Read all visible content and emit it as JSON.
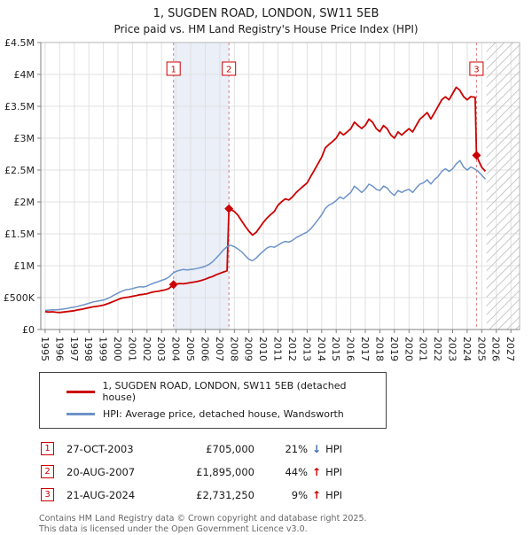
{
  "header": {
    "title": "1, SUGDEN ROAD, LONDON, SW11 5EB",
    "subtitle": "Price paid vs. HM Land Registry's House Price Index (HPI)"
  },
  "colors": {
    "property": "#cc0000",
    "hpi": "#6d93c7",
    "band": "#eaeff8",
    "grid": "#e0e0e0",
    "border": "#b5b5b5",
    "axis": "#808080",
    "hatch": "#c8c8c8",
    "dashed": "#e07c7c",
    "text": "#222222",
    "hpi_down": "#3d6eb5",
    "hpi_up": "#cc0000"
  },
  "chart_data": {
    "type": "line",
    "title": "1, SUGDEN ROAD, LONDON, SW11 5EB",
    "subtitle": "Price paid vs. HM Land Registry's House Price Index (HPI)",
    "x_unit": "year",
    "y_unit": "GBP thousands",
    "x_range": [
      1994.7,
      2027.6
    ],
    "ylim": [
      0,
      4500
    ],
    "grid": true,
    "legend_position": "bottom",
    "x_ticks": [
      1995,
      1996,
      1997,
      1998,
      1999,
      2000,
      2001,
      2002,
      2003,
      2004,
      2005,
      2006,
      2007,
      2008,
      2009,
      2010,
      2011,
      2012,
      2013,
      2014,
      2015,
      2016,
      2017,
      2018,
      2019,
      2020,
      2021,
      2022,
      2023,
      2024,
      2025,
      2026,
      2027
    ],
    "y_ticks": [
      {
        "v": 0,
        "label": "£0"
      },
      {
        "v": 500,
        "label": "£500K"
      },
      {
        "v": 1000,
        "label": "£1M"
      },
      {
        "v": 1500,
        "label": "£1.5M"
      },
      {
        "v": 2000,
        "label": "£2M"
      },
      {
        "v": 2500,
        "label": "£2.5M"
      },
      {
        "v": 3000,
        "label": "£3M"
      },
      {
        "v": 3500,
        "label": "£3.5M"
      },
      {
        "v": 4000,
        "label": "£4M"
      },
      {
        "v": 4500,
        "label": "£4.5M"
      }
    ],
    "ownership_band": [
      2003.82,
      2007.63
    ],
    "future_start": 2025.33,
    "markers": [
      {
        "n": "1",
        "x": 2003.82,
        "y": 705
      },
      {
        "n": "2",
        "x": 2007.63,
        "y": 1895
      },
      {
        "n": "3",
        "x": 2024.64,
        "y": 2731.25
      }
    ],
    "series": [
      {
        "name": "1, SUGDEN ROAD, LONDON, SW11 5EB (detached house)",
        "color": "#cc0000",
        "points": [
          [
            1995,
            280
          ],
          [
            1995.25,
            273
          ],
          [
            1995.5,
            278
          ],
          [
            1995.75,
            271
          ],
          [
            1996,
            266
          ],
          [
            1996.25,
            274
          ],
          [
            1996.5,
            281
          ],
          [
            1996.75,
            288
          ],
          [
            1997,
            295
          ],
          [
            1997.25,
            309
          ],
          [
            1997.5,
            317
          ],
          [
            1997.75,
            329
          ],
          [
            1998,
            341
          ],
          [
            1998.25,
            354
          ],
          [
            1998.5,
            361
          ],
          [
            1998.75,
            371
          ],
          [
            1999,
            382
          ],
          [
            1999.25,
            401
          ],
          [
            1999.5,
            422
          ],
          [
            1999.75,
            446
          ],
          [
            2000,
            470
          ],
          [
            2000.25,
            492
          ],
          [
            2000.5,
            501
          ],
          [
            2000.75,
            509
          ],
          [
            2001,
            521
          ],
          [
            2001.25,
            532
          ],
          [
            2001.5,
            544
          ],
          [
            2001.75,
            551
          ],
          [
            2002,
            561
          ],
          [
            2002.25,
            579
          ],
          [
            2002.5,
            591
          ],
          [
            2002.75,
            599
          ],
          [
            2003,
            611
          ],
          [
            2003.25,
            622
          ],
          [
            2003.5,
            641
          ],
          [
            2003.82,
            705
          ],
          [
            2004,
            712
          ],
          [
            2004.25,
            721
          ],
          [
            2004.5,
            716
          ],
          [
            2004.75,
            726
          ],
          [
            2005,
            736
          ],
          [
            2005.25,
            744
          ],
          [
            2005.5,
            756
          ],
          [
            2005.75,
            771
          ],
          [
            2006,
            789
          ],
          [
            2006.25,
            812
          ],
          [
            2006.5,
            831
          ],
          [
            2006.75,
            858
          ],
          [
            2007,
            879
          ],
          [
            2007.25,
            901
          ],
          [
            2007.5,
            921
          ],
          [
            2007.63,
            1895
          ],
          [
            2007.75,
            1882
          ],
          [
            2008,
            1851
          ],
          [
            2008.25,
            1792
          ],
          [
            2008.5,
            1703
          ],
          [
            2008.75,
            1618
          ],
          [
            2009,
            1542
          ],
          [
            2009.25,
            1481
          ],
          [
            2009.5,
            1523
          ],
          [
            2009.75,
            1601
          ],
          [
            2010,
            1682
          ],
          [
            2010.25,
            1748
          ],
          [
            2010.5,
            1803
          ],
          [
            2010.75,
            1852
          ],
          [
            2011,
            1948
          ],
          [
            2011.25,
            2003
          ],
          [
            2011.5,
            2049
          ],
          [
            2011.75,
            2031
          ],
          [
            2012,
            2082
          ],
          [
            2012.25,
            2148
          ],
          [
            2012.5,
            2201
          ],
          [
            2012.75,
            2252
          ],
          [
            2013,
            2299
          ],
          [
            2013.25,
            2401
          ],
          [
            2013.5,
            2498
          ],
          [
            2013.75,
            2602
          ],
          [
            2014,
            2703
          ],
          [
            2014.25,
            2848
          ],
          [
            2014.5,
            2901
          ],
          [
            2014.75,
            2949
          ],
          [
            2015,
            3002
          ],
          [
            2015.25,
            3098
          ],
          [
            2015.5,
            3051
          ],
          [
            2015.75,
            3099
          ],
          [
            2016,
            3148
          ],
          [
            2016.25,
            3251
          ],
          [
            2016.5,
            3198
          ],
          [
            2016.75,
            3152
          ],
          [
            2017,
            3201
          ],
          [
            2017.25,
            3298
          ],
          [
            2017.5,
            3252
          ],
          [
            2017.75,
            3151
          ],
          [
            2018,
            3102
          ],
          [
            2018.25,
            3199
          ],
          [
            2018.5,
            3148
          ],
          [
            2018.75,
            3052
          ],
          [
            2019,
            3001
          ],
          [
            2019.25,
            3099
          ],
          [
            2019.5,
            3048
          ],
          [
            2019.75,
            3101
          ],
          [
            2020,
            3149
          ],
          [
            2020.25,
            3098
          ],
          [
            2020.5,
            3202
          ],
          [
            2020.75,
            3299
          ],
          [
            2021,
            3348
          ],
          [
            2021.25,
            3401
          ],
          [
            2021.5,
            3302
          ],
          [
            2021.75,
            3398
          ],
          [
            2022,
            3499
          ],
          [
            2022.25,
            3601
          ],
          [
            2022.5,
            3648
          ],
          [
            2022.75,
            3602
          ],
          [
            2023,
            3701
          ],
          [
            2023.25,
            3799
          ],
          [
            2023.5,
            3748
          ],
          [
            2023.75,
            3652
          ],
          [
            2024,
            3601
          ],
          [
            2024.25,
            3652
          ],
          [
            2024.55,
            3640
          ],
          [
            2024.64,
            2731.25
          ],
          [
            2024.8,
            2640
          ],
          [
            2025,
            2545
          ],
          [
            2025.25,
            2480
          ]
        ]
      },
      {
        "name": "HPI: Average price, detached house, Wandsworth",
        "color": "#6d93c7",
        "points": [
          [
            1995,
            300
          ],
          [
            1995.25,
            304
          ],
          [
            1995.5,
            309
          ],
          [
            1995.75,
            307
          ],
          [
            1996,
            314
          ],
          [
            1996.25,
            321
          ],
          [
            1996.5,
            329
          ],
          [
            1996.75,
            341
          ],
          [
            1997,
            351
          ],
          [
            1997.25,
            364
          ],
          [
            1997.5,
            379
          ],
          [
            1997.75,
            394
          ],
          [
            1998,
            411
          ],
          [
            1998.25,
            429
          ],
          [
            1998.5,
            441
          ],
          [
            1998.75,
            452
          ],
          [
            1999,
            461
          ],
          [
            1999.25,
            482
          ],
          [
            1999.5,
            509
          ],
          [
            1999.75,
            541
          ],
          [
            2000,
            571
          ],
          [
            2000.25,
            599
          ],
          [
            2000.5,
            621
          ],
          [
            2000.75,
            629
          ],
          [
            2001,
            641
          ],
          [
            2001.25,
            659
          ],
          [
            2001.5,
            671
          ],
          [
            2001.75,
            666
          ],
          [
            2002,
            681
          ],
          [
            2002.25,
            709
          ],
          [
            2002.5,
            731
          ],
          [
            2002.75,
            749
          ],
          [
            2003,
            771
          ],
          [
            2003.25,
            789
          ],
          [
            2003.5,
            821
          ],
          [
            2003.82,
            890
          ],
          [
            2004,
            911
          ],
          [
            2004.25,
            929
          ],
          [
            2004.5,
            941
          ],
          [
            2004.75,
            934
          ],
          [
            2005,
            941
          ],
          [
            2005.25,
            949
          ],
          [
            2005.5,
            961
          ],
          [
            2005.75,
            974
          ],
          [
            2006,
            991
          ],
          [
            2006.25,
            1019
          ],
          [
            2006.5,
            1061
          ],
          [
            2006.75,
            1119
          ],
          [
            2007,
            1181
          ],
          [
            2007.25,
            1249
          ],
          [
            2007.5,
            1299
          ],
          [
            2007.63,
            1316
          ],
          [
            2007.75,
            1321
          ],
          [
            2008,
            1299
          ],
          [
            2008.25,
            1261
          ],
          [
            2008.5,
            1219
          ],
          [
            2008.75,
            1159
          ],
          [
            2009,
            1101
          ],
          [
            2009.25,
            1079
          ],
          [
            2009.5,
            1121
          ],
          [
            2009.75,
            1179
          ],
          [
            2010,
            1231
          ],
          [
            2010.25,
            1279
          ],
          [
            2010.5,
            1301
          ],
          [
            2010.75,
            1289
          ],
          [
            2011,
            1321
          ],
          [
            2011.25,
            1359
          ],
          [
            2011.5,
            1381
          ],
          [
            2011.75,
            1369
          ],
          [
            2012,
            1399
          ],
          [
            2012.25,
            1441
          ],
          [
            2012.5,
            1469
          ],
          [
            2012.75,
            1501
          ],
          [
            2013,
            1529
          ],
          [
            2013.25,
            1579
          ],
          [
            2013.5,
            1649
          ],
          [
            2013.75,
            1721
          ],
          [
            2014,
            1799
          ],
          [
            2014.25,
            1899
          ],
          [
            2014.5,
            1951
          ],
          [
            2014.75,
            1979
          ],
          [
            2015,
            2021
          ],
          [
            2015.25,
            2079
          ],
          [
            2015.5,
            2049
          ],
          [
            2015.75,
            2101
          ],
          [
            2016,
            2149
          ],
          [
            2016.25,
            2249
          ],
          [
            2016.5,
            2201
          ],
          [
            2016.75,
            2149
          ],
          [
            2017,
            2201
          ],
          [
            2017.25,
            2279
          ],
          [
            2017.5,
            2249
          ],
          [
            2017.75,
            2199
          ],
          [
            2018,
            2179
          ],
          [
            2018.25,
            2249
          ],
          [
            2018.5,
            2219
          ],
          [
            2018.75,
            2149
          ],
          [
            2019,
            2101
          ],
          [
            2019.25,
            2179
          ],
          [
            2019.5,
            2149
          ],
          [
            2019.75,
            2181
          ],
          [
            2020,
            2199
          ],
          [
            2020.25,
            2149
          ],
          [
            2020.5,
            2219
          ],
          [
            2020.75,
            2279
          ],
          [
            2021,
            2301
          ],
          [
            2021.25,
            2349
          ],
          [
            2021.5,
            2281
          ],
          [
            2021.75,
            2351
          ],
          [
            2022,
            2399
          ],
          [
            2022.25,
            2479
          ],
          [
            2022.5,
            2521
          ],
          [
            2022.75,
            2479
          ],
          [
            2023,
            2519
          ],
          [
            2023.25,
            2599
          ],
          [
            2023.5,
            2649
          ],
          [
            2023.75,
            2549
          ],
          [
            2024,
            2499
          ],
          [
            2024.25,
            2549
          ],
          [
            2024.5,
            2519
          ],
          [
            2024.75,
            2481
          ],
          [
            2025,
            2419
          ],
          [
            2025.25,
            2359
          ]
        ]
      }
    ]
  },
  "legend": {
    "items": [
      {
        "label": "1, SUGDEN ROAD, LONDON, SW11 5EB (detached house)",
        "color": "#cc0000"
      },
      {
        "label": "HPI: Average price, detached house, Wandsworth",
        "color": "#6d93c7"
      }
    ]
  },
  "transactions": [
    {
      "n": "1",
      "date": "27-OCT-2003",
      "price": "£705,000",
      "pct": "21%",
      "arrow": "↓",
      "hpi_label": "HPI",
      "arrow_color": "#3d6eb5"
    },
    {
      "n": "2",
      "date": "20-AUG-2007",
      "price": "£1,895,000",
      "pct": "44%",
      "arrow": "↑",
      "hpi_label": "HPI",
      "arrow_color": "#cc0000"
    },
    {
      "n": "3",
      "date": "21-AUG-2024",
      "price": "£2,731,250",
      "pct": "9%",
      "arrow": "↑",
      "hpi_label": "HPI",
      "arrow_color": "#cc0000"
    }
  ],
  "footer": {
    "line1": "Contains HM Land Registry data © Crown copyright and database right 2025.",
    "line2": "This data is licensed under the Open Government Licence v3.0."
  }
}
